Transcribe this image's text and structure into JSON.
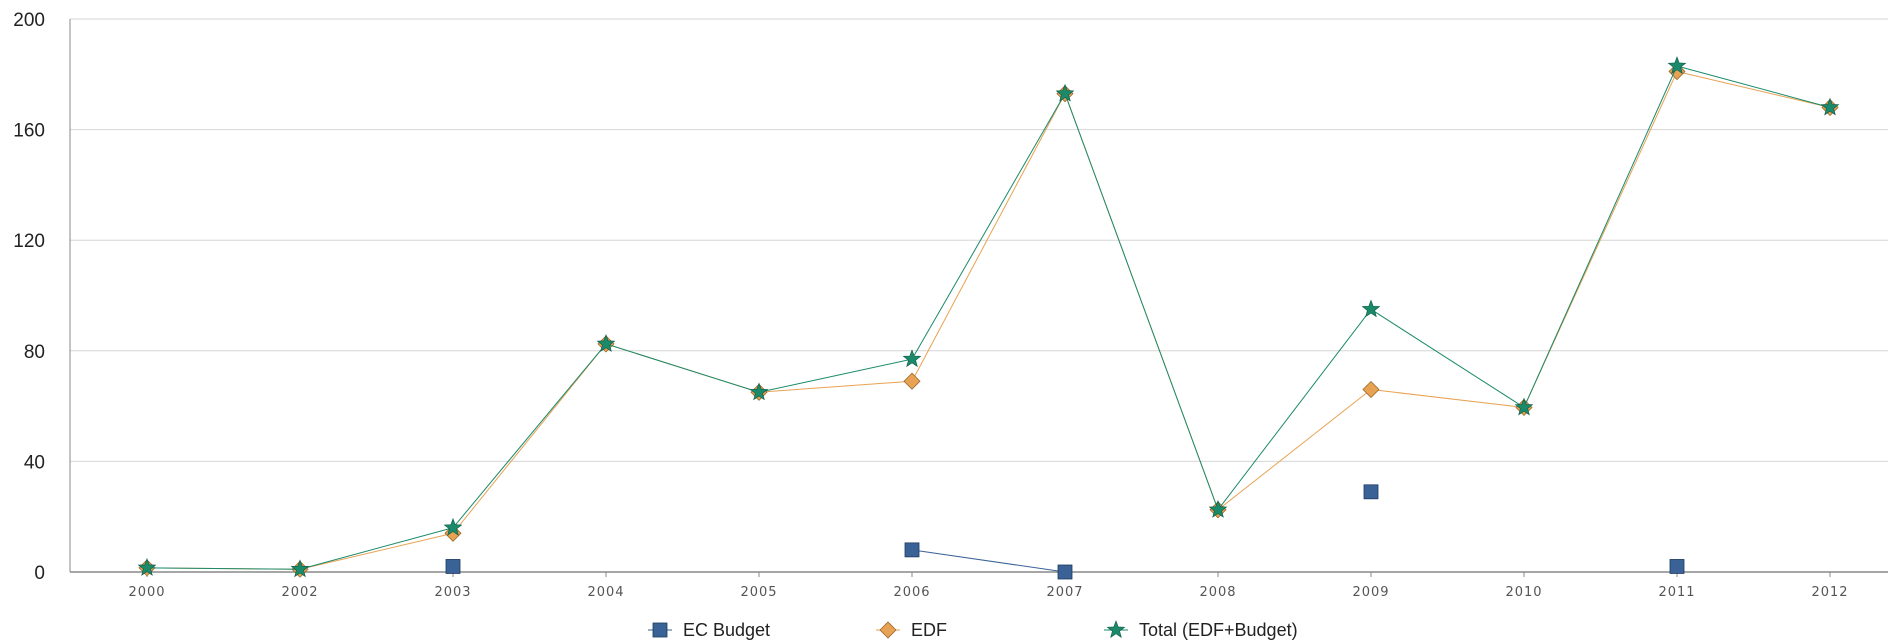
{
  "chart_data": {
    "type": "line",
    "title": "",
    "xlabel": "",
    "ylabel": "",
    "categories": [
      "2000",
      "2002",
      "2003",
      "2004",
      "2005",
      "2006",
      "2007",
      "2008",
      "2009",
      "2010",
      "2011",
      "2012"
    ],
    "ylim": [
      0,
      200
    ],
    "yticks": [
      "0",
      "40",
      "80",
      "120",
      "160",
      "200"
    ],
    "grid": true,
    "legend_position": "bottom",
    "series": [
      {
        "name": "EC Budget",
        "marker": "square",
        "color": "#3a6297",
        "values": [
          null,
          null,
          2,
          null,
          null,
          8,
          0,
          null,
          29,
          null,
          2,
          null
        ]
      },
      {
        "name": "EDF",
        "marker": "diamond",
        "color": "#e8a253",
        "values": [
          1.5,
          1,
          14,
          82.5,
          65,
          69,
          173,
          22.5,
          66,
          59.5,
          181,
          168
        ]
      },
      {
        "name": "Total (EDF+Budget)",
        "marker": "star",
        "color": "#1a8a6a",
        "values": [
          1.5,
          1,
          16,
          82.5,
          65,
          77,
          173,
          22.5,
          95,
          59.5,
          183,
          168
        ]
      }
    ]
  }
}
